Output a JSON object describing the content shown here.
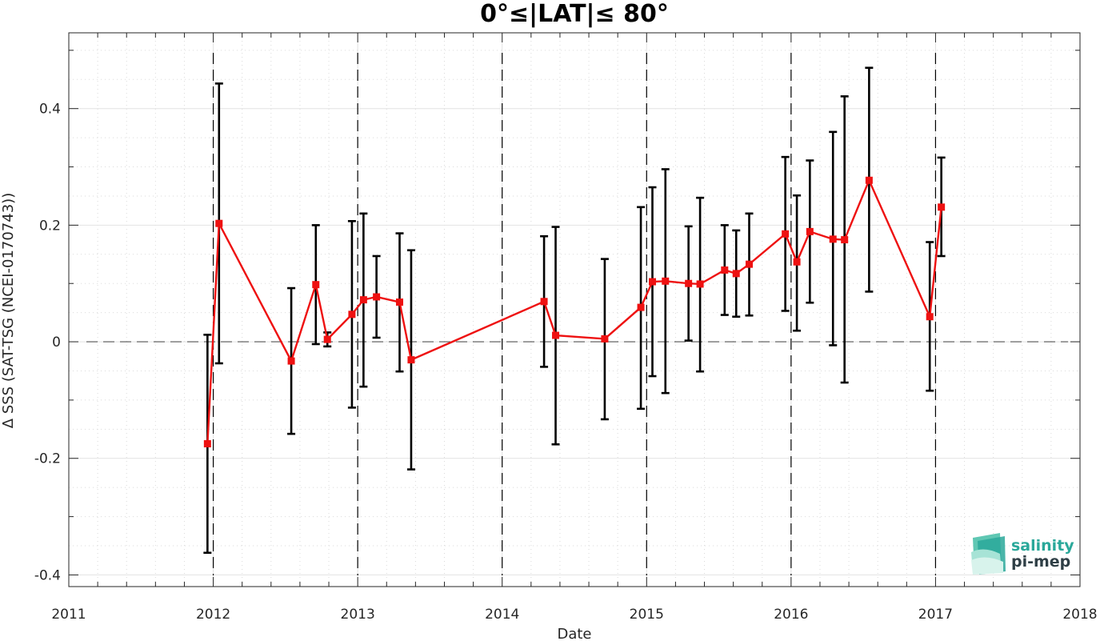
{
  "chart_data": {
    "type": "line",
    "title": "0°≤|LAT|≤ 80°",
    "xlabel": "Date",
    "ylabel": "Δ SSS (SAT-TSG (NCEI-0170743))",
    "xlim": [
      2011,
      2018
    ],
    "ylim": [
      -0.42,
      0.53
    ],
    "x_ticks": [
      "2011",
      "2012",
      "2013",
      "2014",
      "2015",
      "2016",
      "2017",
      "2018"
    ],
    "y_ticks": [
      "0.4",
      "0.2",
      "0",
      "-0.2",
      "-0.4"
    ],
    "grid": true,
    "reference_line": 0,
    "year_markers": [
      2012,
      2013,
      2014,
      2015,
      2016,
      2017
    ],
    "series": [
      {
        "x": [
          2011.96,
          2012.04,
          2012.54,
          2012.71,
          2012.79,
          2012.96,
          2013.04,
          2013.13,
          2013.29,
          2013.37,
          2014.29,
          2014.37,
          2014.71,
          2014.96,
          2015.04,
          2015.13,
          2015.29,
          2015.37,
          2015.54,
          2015.62,
          2015.71,
          2015.96,
          2016.04,
          2016.13,
          2016.29,
          2016.37,
          2016.54,
          2016.96,
          2017.04
        ],
        "y": [
          -0.175,
          0.203,
          -0.033,
          0.098,
          0.004,
          0.047,
          0.072,
          0.077,
          0.068,
          -0.031,
          0.069,
          0.011,
          0.005,
          0.059,
          0.103,
          0.104,
          0.1,
          0.099,
          0.123,
          0.117,
          0.133,
          0.185,
          0.137,
          0.189,
          0.176,
          0.175,
          0.277,
          0.043,
          0.231
        ],
        "err_low": [
          -0.362,
          -0.037,
          -0.158,
          -0.004,
          -0.008,
          -0.113,
          -0.077,
          0.007,
          -0.051,
          -0.219,
          -0.043,
          -0.176,
          -0.133,
          -0.115,
          -0.059,
          -0.088,
          0.002,
          -0.051,
          0.046,
          0.043,
          0.045,
          0.053,
          0.019,
          0.067,
          -0.006,
          -0.07,
          0.086,
          -0.084,
          0.147
        ],
        "err_high": [
          0.012,
          0.443,
          0.092,
          0.2,
          0.016,
          0.207,
          0.22,
          0.147,
          0.186,
          0.157,
          0.181,
          0.197,
          0.142,
          0.231,
          0.265,
          0.296,
          0.198,
          0.247,
          0.2,
          0.191,
          0.22,
          0.317,
          0.251,
          0.311,
          0.36,
          0.421,
          0.47,
          0.171,
          0.316
        ],
        "color": "#ee1111",
        "errorbar_color": "#000000"
      }
    ]
  },
  "logo": {
    "line1": "salinity",
    "line2": "pi-mep",
    "color1": "#2aa89a",
    "color2": "#2f3f46"
  }
}
